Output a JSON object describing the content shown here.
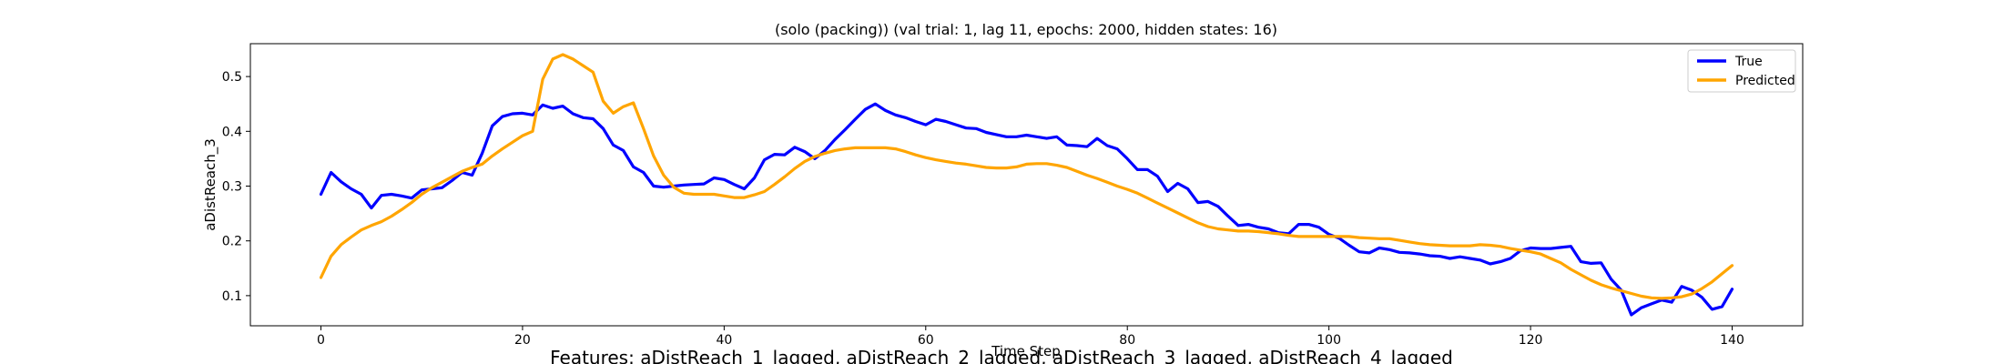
{
  "chart_data": {
    "type": "line",
    "title": "(solo (packing)) (val trial: 1, lag 11, epochs: 2000, hidden states: 16)",
    "xlabel": "Time Step",
    "ylabel": "aDistReach_3",
    "footnote": "Features: aDistReach_1_lagged, aDistReach_2_lagged, aDistReach_3_lagged, aDistReach_4_lagged",
    "xlim": [
      -7,
      147
    ],
    "ylim": [
      0.045,
      0.56
    ],
    "xticks": [
      0,
      20,
      40,
      60,
      80,
      100,
      120,
      140
    ],
    "yticks": [
      0.1,
      0.2,
      0.3,
      0.4,
      0.5
    ],
    "ytick_labels": [
      "0.1",
      "0.2",
      "0.3",
      "0.4",
      "0.5"
    ],
    "legend_position": "upper-right",
    "grid": false,
    "series": [
      {
        "name": "True",
        "color": "#0000ff",
        "x": [
          0,
          1,
          2,
          3,
          4,
          5,
          6,
          7,
          8,
          9,
          10,
          11,
          12,
          13,
          14,
          15,
          16,
          17,
          18,
          19,
          20,
          21,
          22,
          23,
          24,
          25,
          26,
          27,
          28,
          29,
          30,
          31,
          32,
          33,
          34,
          35,
          36,
          37,
          38,
          39,
          40,
          41,
          42,
          43,
          44,
          45,
          46,
          47,
          48,
          49,
          50,
          51,
          52,
          53,
          54,
          55,
          56,
          57,
          58,
          59,
          60,
          61,
          62,
          63,
          64,
          65,
          66,
          67,
          68,
          69,
          70,
          71,
          72,
          73,
          74,
          75,
          76,
          77,
          78,
          79,
          80,
          81,
          82,
          83,
          84,
          85,
          86,
          87,
          88,
          89,
          90,
          91,
          92,
          93,
          94,
          95,
          96,
          97,
          98,
          99,
          100,
          101,
          102,
          103,
          104,
          105,
          106,
          107,
          108,
          109,
          110,
          111,
          112,
          113,
          114,
          115,
          116,
          117,
          118,
          119,
          120,
          121,
          122,
          123,
          124,
          125,
          126,
          127,
          128,
          129,
          130,
          131,
          132,
          133,
          134,
          135,
          136,
          137,
          138,
          139,
          140
        ],
        "y": [
          0.285,
          0.325,
          0.308,
          0.295,
          0.285,
          0.26,
          0.283,
          0.285,
          0.282,
          0.278,
          0.293,
          0.295,
          0.297,
          0.31,
          0.325,
          0.32,
          0.36,
          0.41,
          0.427,
          0.432,
          0.433,
          0.43,
          0.448,
          0.442,
          0.446,
          0.432,
          0.425,
          0.423,
          0.405,
          0.375,
          0.365,
          0.335,
          0.325,
          0.3,
          0.298,
          0.3,
          0.302,
          0.303,
          0.304,
          0.315,
          0.312,
          0.303,
          0.295,
          0.315,
          0.348,
          0.358,
          0.357,
          0.371,
          0.363,
          0.35,
          0.365,
          0.385,
          0.403,
          0.422,
          0.44,
          0.45,
          0.438,
          0.43,
          0.425,
          0.418,
          0.412,
          0.422,
          0.418,
          0.412,
          0.406,
          0.405,
          0.398,
          0.394,
          0.39,
          0.39,
          0.393,
          0.39,
          0.387,
          0.39,
          0.375,
          0.374,
          0.372,
          0.387,
          0.374,
          0.368,
          0.35,
          0.33,
          0.33,
          0.318,
          0.29,
          0.305,
          0.295,
          0.27,
          0.272,
          0.263,
          0.245,
          0.228,
          0.23,
          0.225,
          0.222,
          0.215,
          0.213,
          0.23,
          0.23,
          0.225,
          0.212,
          0.205,
          0.192,
          0.18,
          0.178,
          0.187,
          0.184,
          0.179,
          0.178,
          0.176,
          0.173,
          0.172,
          0.168,
          0.171,
          0.168,
          0.165,
          0.158,
          0.162,
          0.168,
          0.182,
          0.187,
          0.186,
          0.186,
          0.188,
          0.19,
          0.162,
          0.159,
          0.16,
          0.13,
          0.11,
          0.065,
          0.078,
          0.085,
          0.092,
          0.088,
          0.117,
          0.11,
          0.097,
          0.075,
          0.08,
          0.112
        ]
      },
      {
        "name": "Predicted",
        "color": "#ffa500",
        "x": [
          0,
          1,
          2,
          3,
          4,
          5,
          6,
          7,
          8,
          9,
          10,
          11,
          12,
          13,
          14,
          15,
          16,
          17,
          18,
          19,
          20,
          21,
          22,
          23,
          24,
          25,
          26,
          27,
          28,
          29,
          30,
          31,
          32,
          33,
          34,
          35,
          36,
          37,
          38,
          39,
          40,
          41,
          42,
          43,
          44,
          45,
          46,
          47,
          48,
          49,
          50,
          51,
          52,
          53,
          54,
          55,
          56,
          57,
          58,
          59,
          60,
          61,
          62,
          63,
          64,
          65,
          66,
          67,
          68,
          69,
          70,
          71,
          72,
          73,
          74,
          75,
          76,
          77,
          78,
          79,
          80,
          81,
          82,
          83,
          84,
          85,
          86,
          87,
          88,
          89,
          90,
          91,
          92,
          93,
          94,
          95,
          96,
          97,
          98,
          99,
          100,
          101,
          102,
          103,
          104,
          105,
          106,
          107,
          108,
          109,
          110,
          111,
          112,
          113,
          114,
          115,
          116,
          117,
          118,
          119,
          120,
          121,
          122,
          123,
          124,
          125,
          126,
          127,
          128,
          129,
          130,
          131,
          132,
          133,
          134,
          135,
          136,
          137,
          138,
          139,
          140
        ],
        "y": [
          0.133,
          0.172,
          0.193,
          0.207,
          0.22,
          0.228,
          0.235,
          0.245,
          0.257,
          0.27,
          0.285,
          0.297,
          0.307,
          0.317,
          0.327,
          0.334,
          0.34,
          0.355,
          0.368,
          0.38,
          0.392,
          0.4,
          0.495,
          0.532,
          0.54,
          0.532,
          0.52,
          0.508,
          0.455,
          0.433,
          0.445,
          0.452,
          0.405,
          0.355,
          0.32,
          0.298,
          0.287,
          0.285,
          0.285,
          0.285,
          0.282,
          0.279,
          0.279,
          0.284,
          0.29,
          0.303,
          0.317,
          0.332,
          0.345,
          0.354,
          0.36,
          0.365,
          0.368,
          0.37,
          0.37,
          0.37,
          0.37,
          0.368,
          0.363,
          0.357,
          0.352,
          0.348,
          0.345,
          0.342,
          0.34,
          0.337,
          0.334,
          0.333,
          0.333,
          0.335,
          0.34,
          0.341,
          0.341,
          0.338,
          0.334,
          0.327,
          0.32,
          0.314,
          0.307,
          0.3,
          0.294,
          0.287,
          0.278,
          0.269,
          0.26,
          0.251,
          0.242,
          0.233,
          0.226,
          0.222,
          0.22,
          0.218,
          0.218,
          0.217,
          0.215,
          0.213,
          0.21,
          0.208,
          0.208,
          0.208,
          0.208,
          0.208,
          0.208,
          0.206,
          0.205,
          0.204,
          0.204,
          0.201,
          0.198,
          0.195,
          0.193,
          0.192,
          0.191,
          0.191,
          0.191,
          0.193,
          0.192,
          0.19,
          0.186,
          0.183,
          0.18,
          0.176,
          0.168,
          0.16,
          0.148,
          0.138,
          0.128,
          0.12,
          0.114,
          0.109,
          0.104,
          0.099,
          0.096,
          0.095,
          0.096,
          0.098,
          0.103,
          0.113,
          0.125,
          0.14,
          0.155
        ]
      }
    ]
  }
}
